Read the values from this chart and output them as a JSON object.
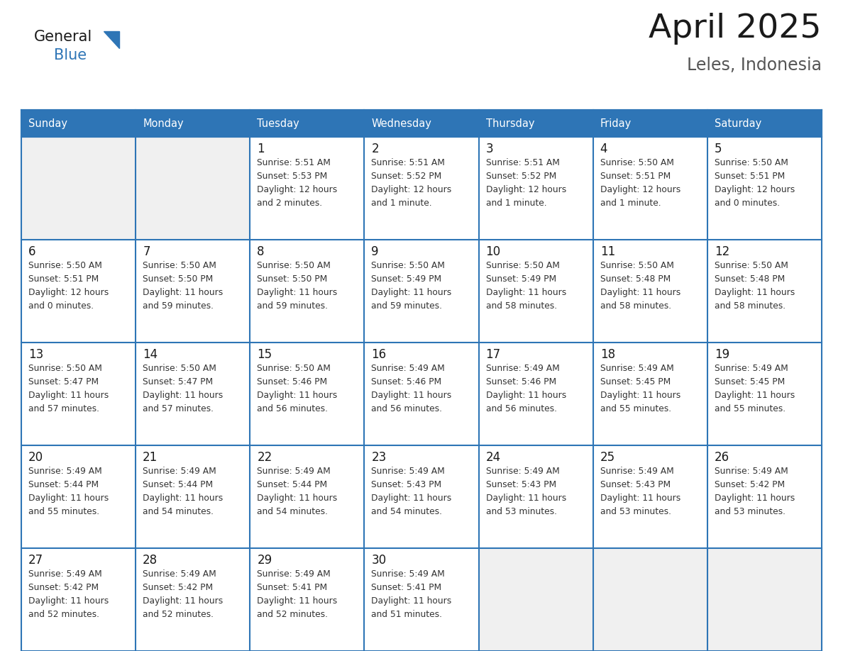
{
  "title": "April 2025",
  "subtitle": "Leles, Indonesia",
  "header_bg": "#2E75B6",
  "header_text": "#FFFFFF",
  "cell_bg": "#FFFFFF",
  "empty_cell_bg": "#F0F0F0",
  "border_color": "#2E75B6",
  "days_of_week": [
    "Sunday",
    "Monday",
    "Tuesday",
    "Wednesday",
    "Thursday",
    "Friday",
    "Saturday"
  ],
  "title_color": "#1a1a1a",
  "subtitle_color": "#555555",
  "day_num_color": "#1a1a1a",
  "cell_text_color": "#333333",
  "logo_general_color": "#1a1a1a",
  "logo_blue_color": "#2E75B6",
  "logo_triangle_color": "#2E75B6",
  "calendar": [
    [
      {
        "day": "",
        "lines": []
      },
      {
        "day": "",
        "lines": []
      },
      {
        "day": "1",
        "lines": [
          "Sunrise: 5:51 AM",
          "Sunset: 5:53 PM",
          "Daylight: 12 hours",
          "and 2 minutes."
        ]
      },
      {
        "day": "2",
        "lines": [
          "Sunrise: 5:51 AM",
          "Sunset: 5:52 PM",
          "Daylight: 12 hours",
          "and 1 minute."
        ]
      },
      {
        "day": "3",
        "lines": [
          "Sunrise: 5:51 AM",
          "Sunset: 5:52 PM",
          "Daylight: 12 hours",
          "and 1 minute."
        ]
      },
      {
        "day": "4",
        "lines": [
          "Sunrise: 5:50 AM",
          "Sunset: 5:51 PM",
          "Daylight: 12 hours",
          "and 1 minute."
        ]
      },
      {
        "day": "5",
        "lines": [
          "Sunrise: 5:50 AM",
          "Sunset: 5:51 PM",
          "Daylight: 12 hours",
          "and 0 minutes."
        ]
      }
    ],
    [
      {
        "day": "6",
        "lines": [
          "Sunrise: 5:50 AM",
          "Sunset: 5:51 PM",
          "Daylight: 12 hours",
          "and 0 minutes."
        ]
      },
      {
        "day": "7",
        "lines": [
          "Sunrise: 5:50 AM",
          "Sunset: 5:50 PM",
          "Daylight: 11 hours",
          "and 59 minutes."
        ]
      },
      {
        "day": "8",
        "lines": [
          "Sunrise: 5:50 AM",
          "Sunset: 5:50 PM",
          "Daylight: 11 hours",
          "and 59 minutes."
        ]
      },
      {
        "day": "9",
        "lines": [
          "Sunrise: 5:50 AM",
          "Sunset: 5:49 PM",
          "Daylight: 11 hours",
          "and 59 minutes."
        ]
      },
      {
        "day": "10",
        "lines": [
          "Sunrise: 5:50 AM",
          "Sunset: 5:49 PM",
          "Daylight: 11 hours",
          "and 58 minutes."
        ]
      },
      {
        "day": "11",
        "lines": [
          "Sunrise: 5:50 AM",
          "Sunset: 5:48 PM",
          "Daylight: 11 hours",
          "and 58 minutes."
        ]
      },
      {
        "day": "12",
        "lines": [
          "Sunrise: 5:50 AM",
          "Sunset: 5:48 PM",
          "Daylight: 11 hours",
          "and 58 minutes."
        ]
      }
    ],
    [
      {
        "day": "13",
        "lines": [
          "Sunrise: 5:50 AM",
          "Sunset: 5:47 PM",
          "Daylight: 11 hours",
          "and 57 minutes."
        ]
      },
      {
        "day": "14",
        "lines": [
          "Sunrise: 5:50 AM",
          "Sunset: 5:47 PM",
          "Daylight: 11 hours",
          "and 57 minutes."
        ]
      },
      {
        "day": "15",
        "lines": [
          "Sunrise: 5:50 AM",
          "Sunset: 5:46 PM",
          "Daylight: 11 hours",
          "and 56 minutes."
        ]
      },
      {
        "day": "16",
        "lines": [
          "Sunrise: 5:49 AM",
          "Sunset: 5:46 PM",
          "Daylight: 11 hours",
          "and 56 minutes."
        ]
      },
      {
        "day": "17",
        "lines": [
          "Sunrise: 5:49 AM",
          "Sunset: 5:46 PM",
          "Daylight: 11 hours",
          "and 56 minutes."
        ]
      },
      {
        "day": "18",
        "lines": [
          "Sunrise: 5:49 AM",
          "Sunset: 5:45 PM",
          "Daylight: 11 hours",
          "and 55 minutes."
        ]
      },
      {
        "day": "19",
        "lines": [
          "Sunrise: 5:49 AM",
          "Sunset: 5:45 PM",
          "Daylight: 11 hours",
          "and 55 minutes."
        ]
      }
    ],
    [
      {
        "day": "20",
        "lines": [
          "Sunrise: 5:49 AM",
          "Sunset: 5:44 PM",
          "Daylight: 11 hours",
          "and 55 minutes."
        ]
      },
      {
        "day": "21",
        "lines": [
          "Sunrise: 5:49 AM",
          "Sunset: 5:44 PM",
          "Daylight: 11 hours",
          "and 54 minutes."
        ]
      },
      {
        "day": "22",
        "lines": [
          "Sunrise: 5:49 AM",
          "Sunset: 5:44 PM",
          "Daylight: 11 hours",
          "and 54 minutes."
        ]
      },
      {
        "day": "23",
        "lines": [
          "Sunrise: 5:49 AM",
          "Sunset: 5:43 PM",
          "Daylight: 11 hours",
          "and 54 minutes."
        ]
      },
      {
        "day": "24",
        "lines": [
          "Sunrise: 5:49 AM",
          "Sunset: 5:43 PM",
          "Daylight: 11 hours",
          "and 53 minutes."
        ]
      },
      {
        "day": "25",
        "lines": [
          "Sunrise: 5:49 AM",
          "Sunset: 5:43 PM",
          "Daylight: 11 hours",
          "and 53 minutes."
        ]
      },
      {
        "day": "26",
        "lines": [
          "Sunrise: 5:49 AM",
          "Sunset: 5:42 PM",
          "Daylight: 11 hours",
          "and 53 minutes."
        ]
      }
    ],
    [
      {
        "day": "27",
        "lines": [
          "Sunrise: 5:49 AM",
          "Sunset: 5:42 PM",
          "Daylight: 11 hours",
          "and 52 minutes."
        ]
      },
      {
        "day": "28",
        "lines": [
          "Sunrise: 5:49 AM",
          "Sunset: 5:42 PM",
          "Daylight: 11 hours",
          "and 52 minutes."
        ]
      },
      {
        "day": "29",
        "lines": [
          "Sunrise: 5:49 AM",
          "Sunset: 5:41 PM",
          "Daylight: 11 hours",
          "and 52 minutes."
        ]
      },
      {
        "day": "30",
        "lines": [
          "Sunrise: 5:49 AM",
          "Sunset: 5:41 PM",
          "Daylight: 11 hours",
          "and 51 minutes."
        ]
      },
      {
        "day": "",
        "lines": []
      },
      {
        "day": "",
        "lines": []
      },
      {
        "day": "",
        "lines": []
      }
    ]
  ]
}
